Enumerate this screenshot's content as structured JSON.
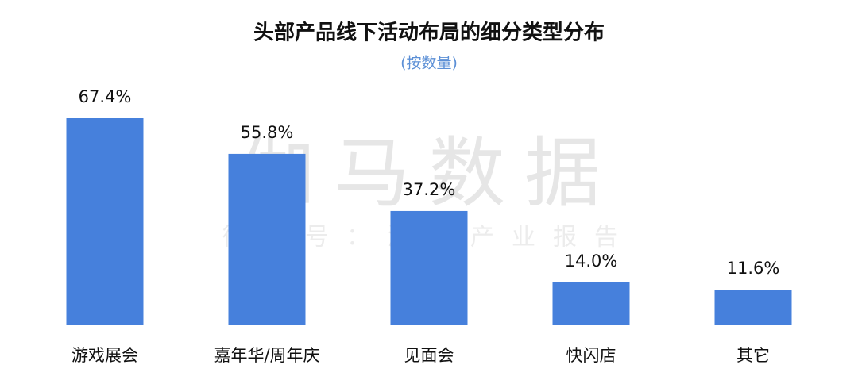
{
  "chart_data": {
    "type": "bar",
    "title": "头部产品线下活动布局的细分类型分布",
    "subtitle": "(按数量)",
    "watermark": "伽马数据",
    "watermark_subtitle": "微信号：游戏产业报告",
    "categories": [
      "游戏展会",
      "嘉年华/周年庆",
      "见面会",
      "快闪店",
      "其它"
    ],
    "values": [
      67.4,
      55.8,
      37.2,
      14.0,
      11.6
    ],
    "value_labels": [
      "67.4%",
      "55.8%",
      "37.2%",
      "14.0%",
      "11.6%"
    ],
    "color": "#4680dc"
  }
}
